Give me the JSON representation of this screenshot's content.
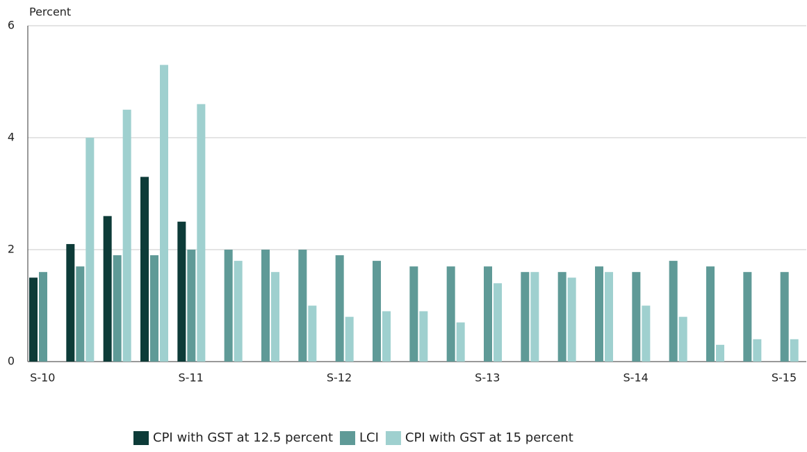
{
  "chart_data": {
    "type": "bar",
    "y_label": "Percent",
    "categories": [
      "S-10",
      null,
      null,
      null,
      "S-11",
      null,
      null,
      null,
      "S-12",
      null,
      null,
      null,
      "S-13",
      null,
      null,
      null,
      "S-14",
      null,
      null,
      null,
      "S-15"
    ],
    "series": [
      {
        "name": "CPI with GST at 12.5 percent",
        "color": "#0d3b38",
        "values": [
          1.5,
          2.1,
          2.6,
          3.3,
          2.5,
          null,
          null,
          null,
          null,
          null,
          null,
          null,
          null,
          null,
          null,
          null,
          null,
          null,
          null,
          null,
          null
        ]
      },
      {
        "name": "LCI",
        "color": "#5f9a97",
        "values": [
          1.6,
          1.7,
          1.9,
          1.9,
          2.0,
          2.0,
          2.0,
          2.0,
          1.9,
          1.8,
          1.7,
          1.7,
          1.7,
          1.6,
          1.6,
          1.7,
          1.6,
          1.8,
          1.7,
          1.6,
          1.6
        ]
      },
      {
        "name": "CPI with GST at 15 percent",
        "color": "#9fd0cf",
        "values": [
          null,
          4.0,
          4.5,
          5.3,
          4.6,
          1.8,
          1.6,
          1.0,
          0.8,
          0.9,
          0.9,
          0.7,
          1.4,
          1.6,
          1.5,
          1.6,
          1.0,
          0.8,
          0.3,
          0.4,
          0.4
        ]
      }
    ],
    "ylim": [
      0,
      6
    ],
    "yticks": [
      0,
      2,
      4,
      6
    ],
    "grid": true
  }
}
